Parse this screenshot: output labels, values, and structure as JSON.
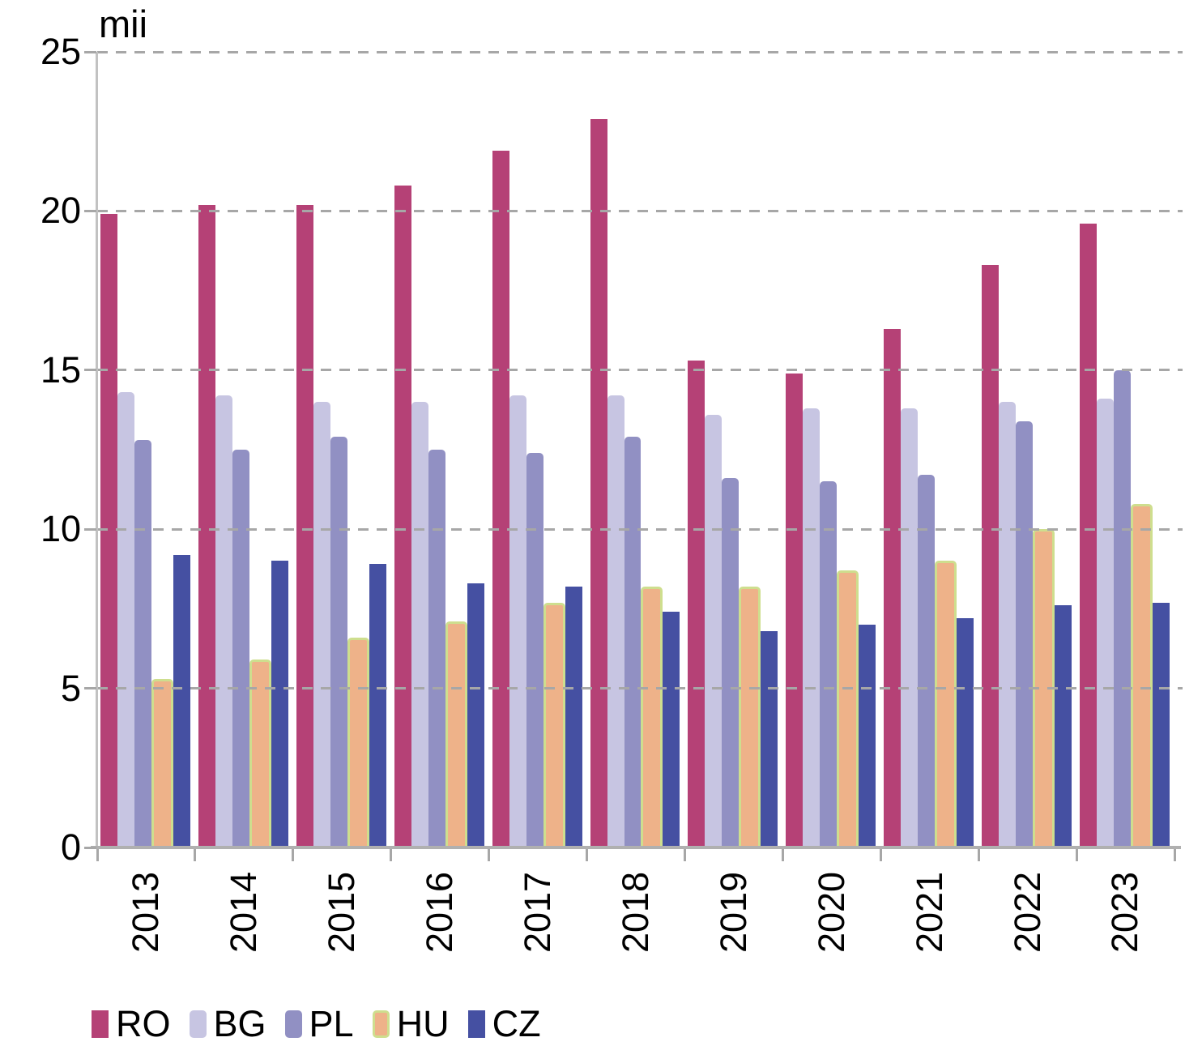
{
  "chart_data": {
    "type": "bar",
    "title": "mii",
    "categories": [
      "2013",
      "2014",
      "2015",
      "2016",
      "2017",
      "2018",
      "2019",
      "2020",
      "2021",
      "2022",
      "2023"
    ],
    "series": [
      {
        "name": "RO",
        "color": "#b54176",
        "rounded": false,
        "values": [
          19.9,
          20.2,
          20.2,
          20.8,
          21.9,
          22.9,
          15.3,
          14.9,
          16.3,
          18.3,
          19.6
        ]
      },
      {
        "name": "BG",
        "color": "#c7c5e2",
        "rounded": true,
        "values": [
          14.3,
          14.2,
          14.0,
          14.0,
          14.2,
          14.2,
          13.6,
          13.8,
          13.8,
          14.0,
          14.1
        ]
      },
      {
        "name": "PL",
        "color": "#9190c3",
        "rounded": true,
        "values": [
          12.8,
          12.5,
          12.9,
          12.5,
          12.4,
          12.9,
          11.6,
          11.5,
          11.7,
          13.4,
          15.0
        ]
      },
      {
        "name": "HU",
        "color": "#eeb289",
        "border_color": "#cede8e",
        "rounded": true,
        "values": [
          5.3,
          5.9,
          6.6,
          7.1,
          7.7,
          8.2,
          8.2,
          8.7,
          9.0,
          10.0,
          10.8
        ]
      },
      {
        "name": "CZ",
        "color": "#4550a2",
        "rounded": false,
        "values": [
          9.2,
          9.0,
          8.9,
          8.3,
          8.2,
          7.4,
          6.8,
          7.0,
          7.2,
          7.6,
          7.7
        ]
      }
    ],
    "ylim": [
      0,
      25
    ],
    "yticks": [
      0,
      5,
      10,
      15,
      20,
      25
    ],
    "grid": "horizontal-dashed",
    "gridline_color": "#a7a7a7",
    "axis_color": "#b0b0b0",
    "legend_position": "bottom"
  }
}
